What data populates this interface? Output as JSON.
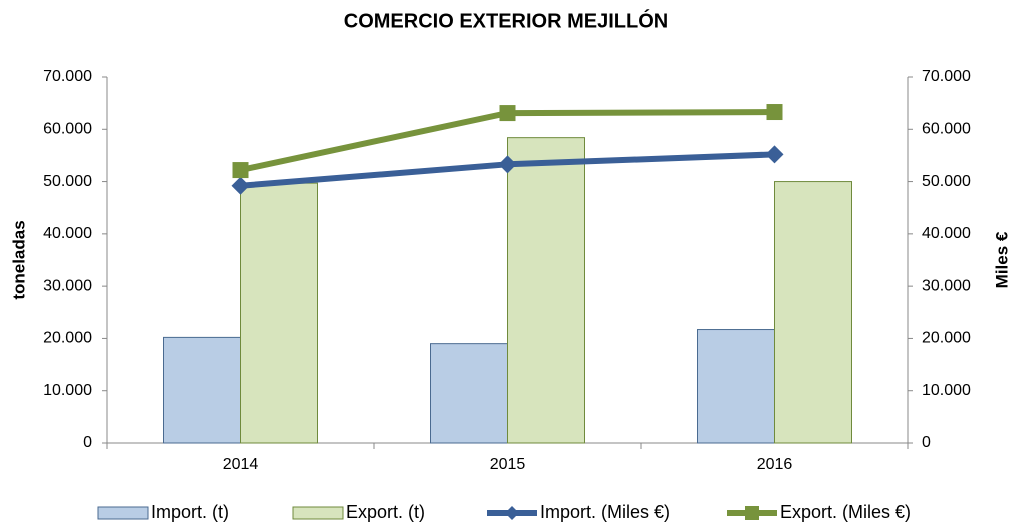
{
  "chart_data": {
    "type": "bar",
    "title": "COMERCIO EXTERIOR MEJILLÓN",
    "ylabel": "toneladas",
    "y2label": "Miles €",
    "categories": [
      "2014",
      "2015",
      "2016"
    ],
    "series": [
      {
        "name": "Import. (t)",
        "type": "bar",
        "color": "#b9cde5",
        "stroke": "#4a6a90",
        "values": [
          20200,
          19000,
          21700
        ]
      },
      {
        "name": "Export. (t)",
        "type": "bar",
        "color": "#d7e4bd",
        "stroke": "#6f8a3c",
        "values": [
          49700,
          58400,
          50000
        ]
      },
      {
        "name": "Import. (Miles €)",
        "type": "line",
        "axis": "y2",
        "color": "#3a5f97",
        "marker": "diamond",
        "values": [
          49200,
          53300,
          55200
        ]
      },
      {
        "name": "Export. (Miles €)",
        "type": "line",
        "axis": "y2",
        "color": "#77933c",
        "marker": "square",
        "values": [
          52200,
          63100,
          63300
        ]
      }
    ],
    "ylim": [
      0,
      70000
    ],
    "yticks": [
      0,
      {
        "value": 10000,
        "label": "10.000"
      },
      {
        "value": 20000,
        "label": "20.000"
      },
      {
        "value": 30000,
        "label": "30.000"
      },
      {
        "value": 40000,
        "label": "40.000"
      },
      {
        "value": 50000,
        "label": "50.000"
      },
      {
        "value": 60000,
        "label": "60.000"
      },
      {
        "value": 70000,
        "label": "70.000"
      }
    ],
    "y2lim": [
      0,
      70000
    ],
    "y2ticks": [
      0,
      {
        "value": 10000,
        "label": "10.000"
      },
      {
        "value": 20000,
        "label": "20.000"
      },
      {
        "value": 30000,
        "label": "30.000"
      },
      {
        "value": 40000,
        "label": "40.000"
      },
      {
        "value": 50000,
        "label": "50.000"
      },
      {
        "value": 60000,
        "label": "60.000"
      },
      {
        "value": 70000,
        "label": "70.000"
      }
    ],
    "grid": false,
    "legend": "bottom"
  }
}
